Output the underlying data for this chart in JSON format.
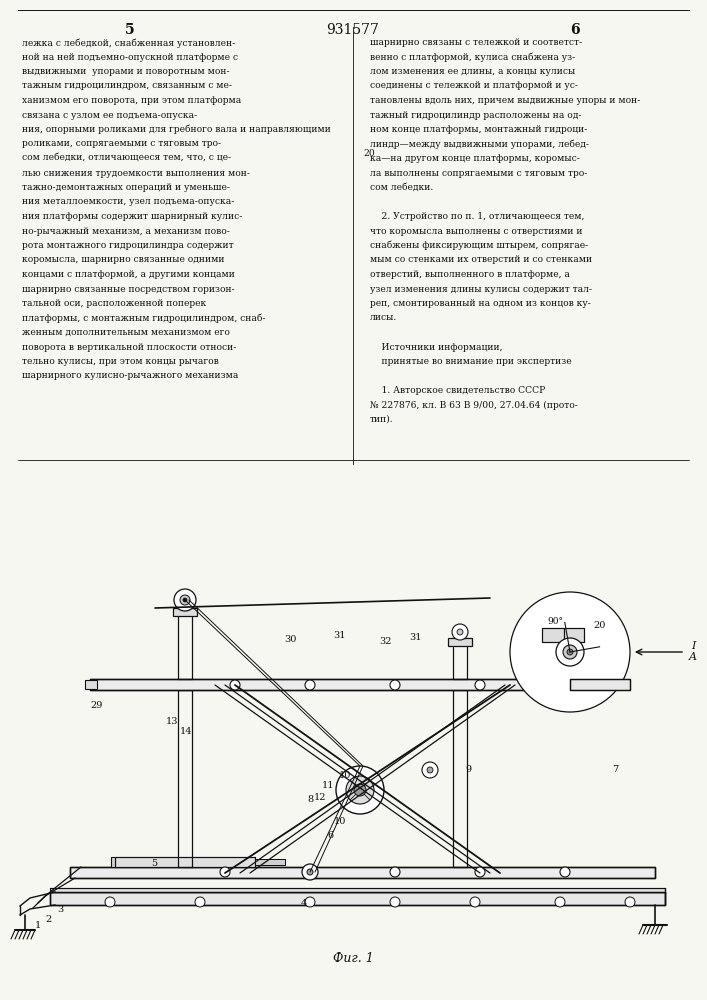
{
  "bg": "#f7f7f2",
  "lc": "#111111",
  "patent_number": "931577",
  "col_left": "5",
  "col_right": "6",
  "fig_caption": "Фиг. 1",
  "text_left_lines": [
    "лежка с лебедкой, снабженная установлен-",
    "ной на ней подъемно-опускной платформе с",
    "выдвижными  упорами и поворотным мон-",
    "тажным гидроцилиндром, связанным с ме-",
    "ханизмом его поворота, при этом платформа",
    "связана с узлом ее подъема-опуска-",
    "ния, опорными роликами для гребного вала и направляющими",
    "роликами, сопрягаемыми с тяговым тро-",
    "сом лебедки, отличающееся тем, что, с це-",
    "лью снижения трудоемкости выполнения мон-",
    "тажно-демонтажных операций и уменьше-",
    "ния металлоемкости, узел подъема-опуска-",
    "ния платформы содержит шарнирный кулис-",
    "но-рычажный механизм, а механизм пово-",
    "рота монтажного гидроцилиндра содержит",
    "коромысла, шарнирно связанные одними",
    "концами с платформой, а другими концами",
    "шарнирно связанные посредством горизон-",
    "тальной оси, расположенной поперек",
    "платформы, с монтажным гидроцилиндром, снаб-",
    "женным дополнительным механизмом его",
    "поворота в вертикальной плоскости относи-",
    "тельно кулисы, при этом концы рычагов",
    "шарнирного кулисно-рычажного механизма"
  ],
  "text_right_lines": [
    "шарнирно связаны с тележкой и соответст-",
    "венно с платформой, кулиса снабжена уз-",
    "лом изменения ее длины, а концы кулисы",
    "соединены с тележкой и платформой и ус-",
    "тановлены вдоль них, причем выдвижные упоры и мон-",
    "тажный гидроцилиндр расположены на од-",
    "ном конце платформы, монтажный гидроци-",
    "линдр—между выдвижными упорами, лебед-",
    "ка—на другом конце платформы, коромыс-",
    "ла выполнены сопрягаемыми с тяговым тро-",
    "сом лебедки.",
    "",
    "    2. Устройство по п. 1, отличающееся тем,",
    "что коромысла выполнены с отверстиями и",
    "снабжены фиксирующим штырем, сопрягае-",
    "мым со стенками их отверстий и со стенками",
    "отверстий, выполненного в платформе, а",
    "узел изменения длины кулисы содержит тал-",
    "реп, смонтированный на одном из концов ку-",
    "лисы.",
    "",
    "    Источники информации,",
    "    принятые во внимание при экспертизе",
    "",
    "    1. Авторское свидетельство СССР",
    "№ 227876, кл. В 63 В 9/00, 27.04.64 (прото-",
    "тип)."
  ],
  "line_number_right": "20"
}
